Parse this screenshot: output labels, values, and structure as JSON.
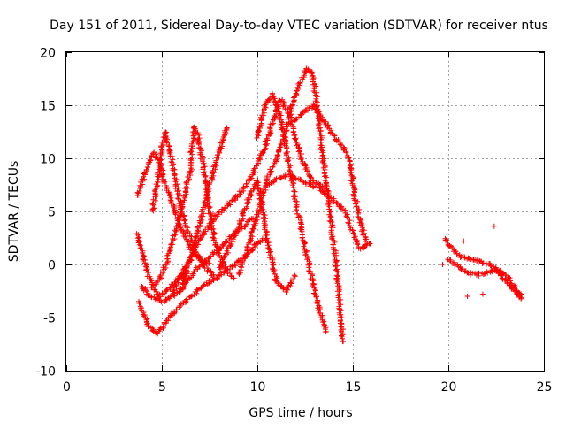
{
  "chart_data": {
    "type": "scatter",
    "title": "Day 151 of 2011, Sidereal Day-to-day VTEC variation (SDTVAR) for receiver ntus",
    "xlabel": "GPS time / hours",
    "ylabel": "SDTVAR / TECUs",
    "xlim": [
      0,
      25
    ],
    "ylim": [
      -10,
      20
    ],
    "x_ticks": [
      "0",
      "5",
      "10",
      "15",
      "20",
      "25"
    ],
    "y_ticks": [
      "-10",
      "-5",
      "0",
      "5",
      "10",
      "15",
      "20"
    ],
    "grid": true,
    "marker": "+",
    "color": "#ff0000",
    "series": [
      {
        "tracks": [
          [
            [
              3.7,
              6.5
            ],
            [
              4.0,
              8.0
            ],
            [
              4.3,
              9.5
            ],
            [
              4.6,
              10.5
            ],
            [
              4.9,
              9.5
            ],
            [
              5.2,
              7.5
            ],
            [
              5.6,
              5.5
            ],
            [
              6.0,
              3.5
            ],
            [
              6.5,
              1.5
            ],
            [
              7.0,
              0.5
            ],
            [
              7.5,
              0.0
            ]
          ],
          [
            [
              3.7,
              3.0
            ],
            [
              4.0,
              1.0
            ],
            [
              4.3,
              -1.0
            ],
            [
              4.6,
              -2.5
            ],
            [
              4.9,
              -3.0
            ],
            [
              5.3,
              -2.5
            ],
            [
              5.8,
              -1.5
            ],
            [
              6.4,
              -0.5
            ]
          ],
          [
            [
              3.8,
              -3.5
            ],
            [
              4.1,
              -5.0
            ],
            [
              4.4,
              -6.0
            ],
            [
              4.7,
              -6.5
            ],
            [
              5.0,
              -6.0
            ],
            [
              5.4,
              -5.0
            ],
            [
              5.9,
              -4.0
            ],
            [
              6.5,
              -3.0
            ],
            [
              7.2,
              -2.0
            ],
            [
              8.0,
              -1.0
            ],
            [
              8.8,
              0.0
            ],
            [
              9.5,
              1.0
            ],
            [
              10.0,
              2.0
            ],
            [
              10.5,
              2.5
            ]
          ],
          [
            [
              3.9,
              -2.0
            ],
            [
              4.4,
              -3.0
            ],
            [
              5.0,
              -3.5
            ],
            [
              5.6,
              -3.0
            ],
            [
              6.2,
              -2.0
            ],
            [
              6.8,
              -0.5
            ],
            [
              7.4,
              0.5
            ],
            [
              8.0,
              1.5
            ],
            [
              8.6,
              2.5
            ],
            [
              9.2,
              3.5
            ],
            [
              9.8,
              4.5
            ]
          ],
          [
            [
              4.5,
              5.0
            ],
            [
              4.8,
              8.0
            ],
            [
              5.0,
              11.0
            ],
            [
              5.2,
              12.5
            ],
            [
              5.5,
              10.0
            ],
            [
              5.8,
              7.0
            ],
            [
              6.2,
              4.0
            ],
            [
              6.8,
              1.0
            ],
            [
              7.4,
              -0.5
            ],
            [
              8.0,
              -1.5
            ]
          ],
          [
            [
              4.7,
              -2.0
            ],
            [
              5.2,
              0.0
            ],
            [
              5.7,
              3.0
            ],
            [
              6.2,
              6.5
            ],
            [
              6.5,
              9.0
            ],
            [
              6.6,
              11.5
            ],
            [
              6.7,
              13.0
            ],
            [
              6.9,
              12.0
            ],
            [
              7.2,
              9.0
            ],
            [
              7.5,
              5.0
            ],
            [
              7.8,
              2.0
            ],
            [
              8.2,
              0.0
            ],
            [
              8.8,
              -1.5
            ]
          ],
          [
            [
              6.0,
              -2.5
            ],
            [
              6.5,
              0.5
            ],
            [
              7.0,
              4.0
            ],
            [
              7.5,
              7.5
            ],
            [
              8.0,
              10.5
            ],
            [
              8.3,
              12.5
            ],
            [
              8.5,
              13.0
            ]
          ],
          [
            [
              5.5,
              -3.0
            ],
            [
              6.0,
              -1.0
            ],
            [
              6.6,
              1.0
            ],
            [
              7.2,
              3.0
            ],
            [
              7.8,
              4.5
            ],
            [
              8.4,
              5.5
            ],
            [
              9.0,
              6.5
            ],
            [
              9.6,
              8.0
            ],
            [
              10.0,
              9.5
            ],
            [
              10.4,
              11.0
            ],
            [
              10.8,
              13.5
            ],
            [
              11.2,
              15.5
            ],
            [
              11.6,
              14.5
            ],
            [
              12.0,
              12.0
            ],
            [
              12.4,
              9.5
            ],
            [
              12.8,
              8.0
            ],
            [
              13.2,
              7.5
            ],
            [
              13.6,
              7.0
            ]
          ],
          [
            [
              9.0,
              -1.0
            ],
            [
              9.4,
              1.0
            ],
            [
              9.8,
              3.5
            ],
            [
              10.2,
              6.0
            ],
            [
              10.6,
              8.5
            ],
            [
              11.0,
              10.0
            ],
            [
              11.4,
              12.0
            ],
            [
              11.8,
              15.0
            ],
            [
              12.2,
              17.0
            ],
            [
              12.6,
              18.5
            ],
            [
              12.9,
              18.0
            ],
            [
              13.2,
              14.0
            ],
            [
              13.5,
              9.0
            ],
            [
              13.8,
              5.0
            ],
            [
              14.1,
              0.5
            ],
            [
              14.3,
              -3.5
            ],
            [
              14.5,
              -7.5
            ]
          ],
          [
            [
              10.0,
              12.0
            ],
            [
              10.4,
              15.0
            ],
            [
              10.8,
              16.0
            ],
            [
              11.2,
              14.0
            ],
            [
              11.6,
              10.0
            ],
            [
              12.0,
              6.0
            ],
            [
              12.4,
              2.5
            ],
            [
              12.8,
              -1.0
            ],
            [
              13.2,
              -4.0
            ],
            [
              13.6,
              -6.5
            ]
          ],
          [
            [
              10.5,
              7.5
            ],
            [
              11.0,
              8.0
            ],
            [
              11.6,
              8.5
            ],
            [
              12.2,
              8.0
            ],
            [
              12.8,
              7.5
            ],
            [
              13.4,
              7.0
            ],
            [
              14.0,
              6.0
            ],
            [
              14.6,
              5.0
            ],
            [
              15.0,
              3.0
            ],
            [
              15.4,
              1.5
            ],
            [
              15.8,
              1.8
            ]
          ],
          [
            [
              12.0,
              13.5
            ],
            [
              12.5,
              14.5
            ],
            [
              13.0,
              15.0
            ],
            [
              13.5,
              13.5
            ],
            [
              14.0,
              12.0
            ],
            [
              14.5,
              11.0
            ],
            [
              14.8,
              10.0
            ],
            [
              15.1,
              6.5
            ],
            [
              15.4,
              4.0
            ],
            [
              15.7,
              2.0
            ],
            [
              16.0,
              1.8
            ]
          ],
          [
            [
              8.0,
              -0.5
            ],
            [
              8.5,
              1.5
            ],
            [
              9.0,
              3.5
            ],
            [
              9.5,
              6.0
            ],
            [
              10.0,
              8.0
            ],
            [
              10.3,
              5.0
            ],
            [
              10.6,
              1.5
            ],
            [
              11.0,
              -1.5
            ],
            [
              11.5,
              -2.5
            ],
            [
              12.0,
              -1.0
            ]
          ],
          [
            [
              19.8,
              2.5
            ],
            [
              20.2,
              1.5
            ],
            [
              20.6,
              0.8
            ],
            [
              21.0,
              0.5
            ],
            [
              21.4,
              0.5
            ],
            [
              21.8,
              0.2
            ],
            [
              22.2,
              0.0
            ],
            [
              22.6,
              -0.5
            ],
            [
              23.0,
              -1.0
            ],
            [
              23.4,
              -2.0
            ],
            [
              23.8,
              -3.0
            ]
          ],
          [
            [
              20.0,
              0.5
            ],
            [
              20.5,
              -0.2
            ],
            [
              21.0,
              -0.8
            ],
            [
              21.5,
              -1.0
            ],
            [
              22.0,
              -0.8
            ],
            [
              22.5,
              -0.5
            ],
            [
              23.0,
              -1.5
            ],
            [
              23.5,
              -2.5
            ],
            [
              23.9,
              -3.3
            ]
          ]
        ],
        "outliers": [
          [
            22.4,
            3.6
          ],
          [
            21.0,
            -3.0
          ],
          [
            19.7,
            0.0
          ],
          [
            20.8,
            2.2
          ],
          [
            21.8,
            -2.8
          ]
        ]
      }
    ]
  }
}
